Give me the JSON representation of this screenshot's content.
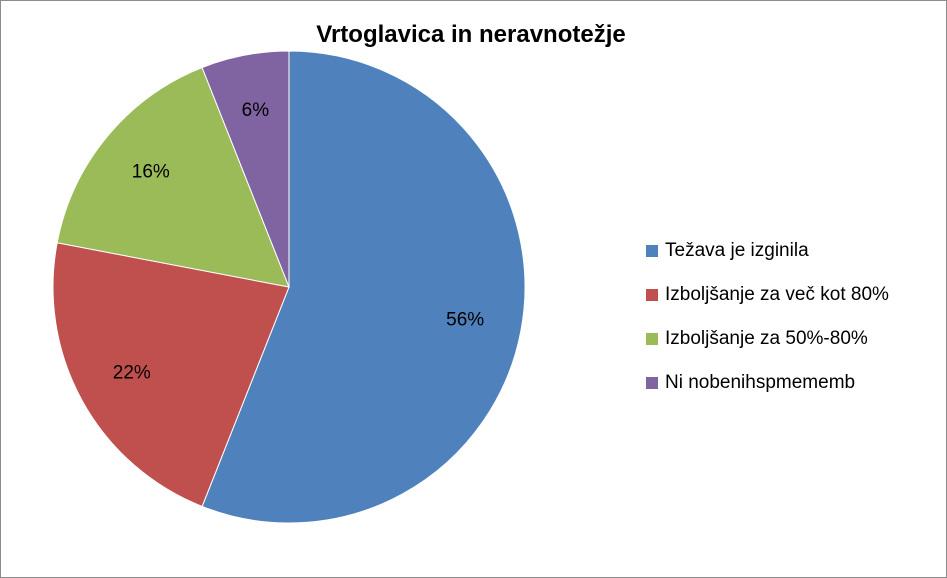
{
  "chart_data": {
    "type": "pie",
    "title": "Vrtoglavica in neravnotežje",
    "categories": [
      "Težava je izginila",
      "Izboljšanje za več kot 80%",
      "Izboljšanje za 50%-80%",
      "Ni nobenihspmememb"
    ],
    "values": [
      56,
      22,
      16,
      6
    ],
    "data_labels": [
      "56%",
      "22%",
      "16%",
      "6%"
    ],
    "colors": [
      "#4F81BD",
      "#C0504D",
      "#9BBB59",
      "#8064A2"
    ],
    "legend_position": "right"
  }
}
